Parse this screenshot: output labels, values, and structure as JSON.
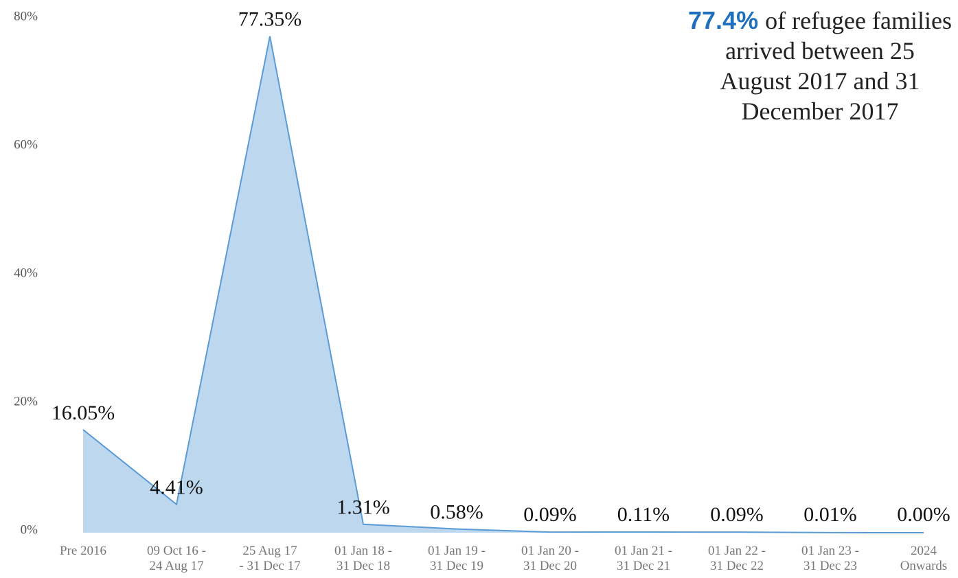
{
  "chart_data": {
    "type": "area",
    "annotation": {
      "highlight": "77.4%",
      "text": "of refugee families\narrived between 25\nAugust 2017 and 31\nDecember 2017"
    },
    "categories": [
      "Pre 2016",
      "09 Oct 16 -\n24 Aug 17",
      "25 Aug 17\n- 31 Dec 17",
      "01 Jan 18 -\n31 Dec 18",
      "01 Jan 19 -\n31 Dec 19",
      "01 Jan 20 -\n31 Dec 20",
      "01 Jan 21 -\n31 Dec 21",
      "01 Jan 22 -\n31 Dec 22",
      "01 Jan 23 -\n31 Dec 23",
      "2024\nOnwards"
    ],
    "values": [
      16.05,
      4.41,
      77.35,
      1.31,
      0.58,
      0.09,
      0.11,
      0.09,
      0.01,
      0.0
    ],
    "value_labels": [
      "16.05%",
      "4.41%",
      "77.35%",
      "1.31%",
      "0.58%",
      "0.09%",
      "0.11%",
      "0.09%",
      "0.01%",
      "0.00%"
    ],
    "color": "#bdd7ee",
    "line_color": "#5b9bd5",
    "ylim": [
      0,
      80
    ],
    "yticks": [
      {
        "value": 0,
        "label": "0%"
      },
      {
        "value": 20,
        "label": "20%"
      },
      {
        "value": 40,
        "label": "40%"
      },
      {
        "value": 60,
        "label": "60%"
      },
      {
        "value": 80,
        "label": "80%"
      }
    ],
    "grid": false
  }
}
